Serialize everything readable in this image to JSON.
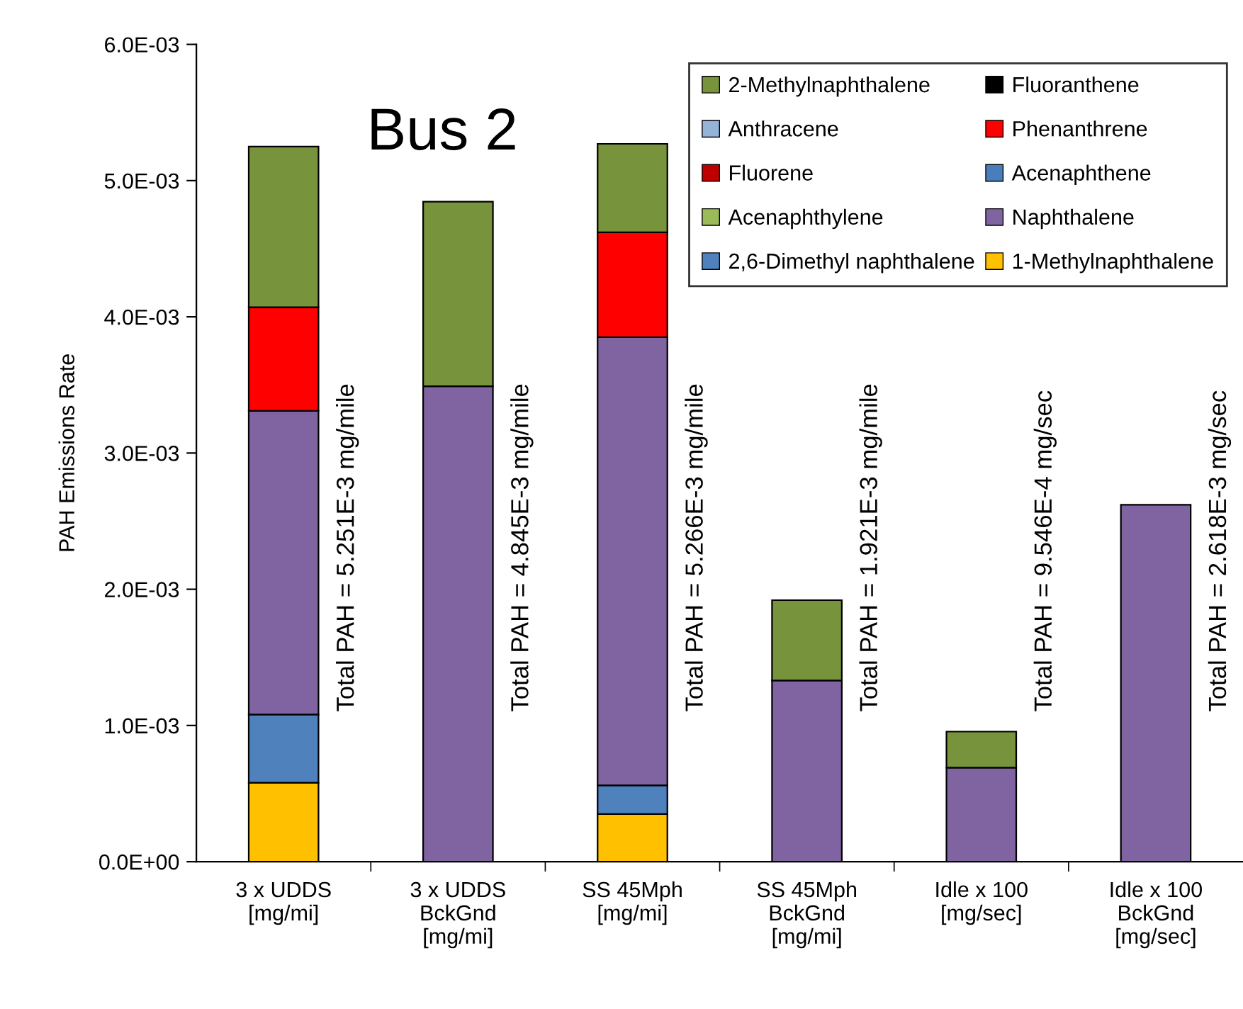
{
  "chart_data": {
    "type": "bar",
    "stacked": true,
    "title": "Bus 2",
    "ylabel": "PAH Emissions Rate",
    "categories": [
      "3 x UDDS\n[mg/mi]",
      "3 x UDDS\nBckGnd\n[mg/mi]",
      "SS 45Mph\n[mg/mi]",
      "SS 45Mph\nBckGnd\n[mg/mi]",
      "Idle x 100\n[mg/sec]",
      "Idle x 100\nBckGnd\n[mg/sec]"
    ],
    "series": [
      {
        "name": "1-Methylnaphthalene",
        "color": "#ffc000",
        "values": [
          0.00058,
          null,
          0.00035,
          null,
          null,
          null
        ]
      },
      {
        "name": "2,6-Dimethyl naphthalene",
        "color": "#4f81bd",
        "values": [
          0.0005,
          null,
          0.00021,
          null,
          null,
          null
        ]
      },
      {
        "name": "Naphthalene",
        "color": "#8064a2",
        "values": [
          0.00223,
          0.00349,
          0.00329,
          0.00133,
          0.00069,
          0.00262
        ]
      },
      {
        "name": "Acenaphthylene",
        "color": "#9bbb59",
        "values": [
          null,
          null,
          null,
          null,
          null,
          null
        ]
      },
      {
        "name": "Acenaphthene",
        "color": "#4a7ebb",
        "values": [
          null,
          null,
          null,
          null,
          null,
          null
        ]
      },
      {
        "name": "Fluorene",
        "color": "#c00000",
        "values": [
          null,
          null,
          null,
          null,
          null,
          null
        ]
      },
      {
        "name": "Phenanthrene",
        "color": "#ff0000",
        "values": [
          0.00076,
          null,
          0.00077,
          null,
          null,
          null
        ]
      },
      {
        "name": "Anthracene",
        "color": "#95b3d7",
        "values": [
          null,
          null,
          null,
          null,
          null,
          null
        ]
      },
      {
        "name": "Fluoranthene",
        "color": "#000000",
        "values": [
          null,
          null,
          null,
          null,
          null,
          null
        ]
      },
      {
        "name": "2-Methylnaphthalene",
        "color": "#77933c",
        "values": [
          0.00118,
          0.001355,
          0.00065,
          0.00059,
          0.000265,
          null
        ]
      }
    ],
    "ylim": [
      0,
      0.006
    ],
    "yticks": [
      {
        "value": 0,
        "label": "0.0E+00"
      },
      {
        "value": 0.001,
        "label": "1.0E-03"
      },
      {
        "value": 0.002,
        "label": "2.0E-03"
      },
      {
        "value": 0.003,
        "label": "3.0E-03"
      },
      {
        "value": 0.004,
        "label": "4.0E-03"
      },
      {
        "value": 0.005,
        "label": "5.0E-03"
      },
      {
        "value": 0.006,
        "label": "6.0E-03"
      }
    ],
    "annotations": [
      "Total PAH = 5.251E-3 mg/mile",
      "Total PAH = 4.845E-3 mg/mile",
      "Total PAH = 5.266E-3 mg/mile",
      "Total PAH = 1.921E-3 mg/mile",
      "Total PAH = 9.546E-4 mg/sec",
      "Total PAH = 2.618E-3 mg/sec"
    ],
    "legend": "top right",
    "grid": false
  }
}
